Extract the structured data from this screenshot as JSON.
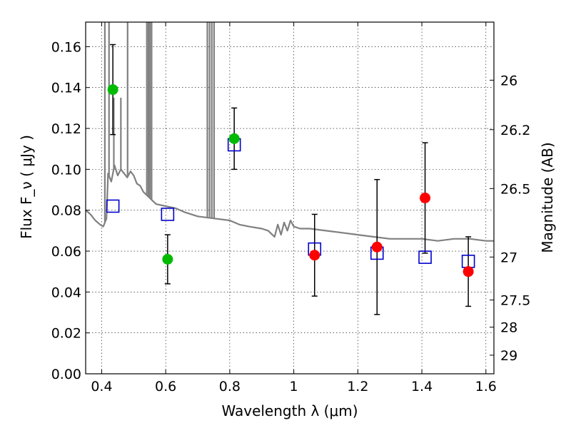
{
  "chart_data": {
    "type": "scatter",
    "xlabel": "Wavelength  λ (μm)",
    "ylabel": "Flux  F_ν  ( μJy )",
    "ylabel_right": "Magnitude (AB)",
    "xlim": [
      0.35,
      1.625
    ],
    "ylim": [
      0.0,
      0.172
    ],
    "grid": true,
    "x_ticks": [
      0.4,
      0.6,
      0.8,
      1.0,
      1.2,
      1.4,
      1.6
    ],
    "x_tick_labels": [
      "0.4",
      "0.6",
      "0.8",
      "1",
      "1.2",
      "1.4",
      "1.6"
    ],
    "y_ticks": [
      0.0,
      0.02,
      0.04,
      0.06,
      0.08,
      0.1,
      0.12,
      0.14,
      0.16
    ],
    "y_tick_labels": [
      "0.00",
      "0.02",
      "0.04",
      "0.06",
      "0.08",
      "0.10",
      "0.12",
      "0.14",
      "0.16"
    ],
    "right_ticks": [
      {
        "label": "26",
        "flux": 0.1436
      },
      {
        "label": "26.2",
        "flux": 0.1194
      },
      {
        "label": "26.5",
        "flux": 0.0906
      },
      {
        "label": "27",
        "flux": 0.0571
      },
      {
        "label": "27.5",
        "flux": 0.0361
      },
      {
        "label": "28",
        "flux": 0.0228
      },
      {
        "label": "29",
        "flux": 0.0091
      }
    ],
    "series": [
      {
        "name": "green photometry",
        "color": "#00bb00",
        "marker": "circle",
        "points": [
          {
            "x": 0.435,
            "y": 0.139,
            "ylo": 0.117,
            "yhi": 0.161
          },
          {
            "x": 0.606,
            "y": 0.056,
            "ylo": 0.044,
            "yhi": 0.068
          },
          {
            "x": 0.814,
            "y": 0.115,
            "ylo": 0.1,
            "yhi": 0.13
          }
        ]
      },
      {
        "name": "red photometry",
        "color": "#ff0000",
        "marker": "circle",
        "points": [
          {
            "x": 1.065,
            "y": 0.058,
            "ylo": 0.038,
            "yhi": 0.078
          },
          {
            "x": 1.26,
            "y": 0.062,
            "ylo": 0.029,
            "yhi": 0.095
          },
          {
            "x": 1.41,
            "y": 0.086,
            "ylo": 0.059,
            "yhi": 0.113
          },
          {
            "x": 1.545,
            "y": 0.05,
            "ylo": 0.033,
            "yhi": 0.067
          }
        ]
      },
      {
        "name": "model photometry",
        "color": "#0000cc",
        "marker": "open-square",
        "points": [
          {
            "x": 0.435,
            "y": 0.082
          },
          {
            "x": 0.606,
            "y": 0.078
          },
          {
            "x": 0.814,
            "y": 0.112
          },
          {
            "x": 1.065,
            "y": 0.061
          },
          {
            "x": 1.26,
            "y": 0.059
          },
          {
            "x": 1.41,
            "y": 0.057
          },
          {
            "x": 1.545,
            "y": 0.055
          }
        ]
      }
    ],
    "model_spectrum": {
      "name": "SED model",
      "color": "#808080",
      "points": [
        [
          0.35,
          0.08
        ],
        [
          0.365,
          0.078
        ],
        [
          0.38,
          0.075
        ],
        [
          0.395,
          0.073
        ],
        [
          0.405,
          0.072
        ],
        [
          0.415,
          0.076
        ],
        [
          0.42,
          0.098
        ],
        [
          0.43,
          0.094
        ],
        [
          0.44,
          0.102
        ],
        [
          0.45,
          0.097
        ],
        [
          0.46,
          0.1
        ],
        [
          0.47,
          0.098
        ],
        [
          0.48,
          0.096
        ],
        [
          0.49,
          0.099
        ],
        [
          0.5,
          0.097
        ],
        [
          0.51,
          0.093
        ],
        [
          0.52,
          0.092
        ],
        [
          0.53,
          0.089
        ],
        [
          0.55,
          0.086
        ],
        [
          0.57,
          0.083
        ],
        [
          0.6,
          0.082
        ],
        [
          0.63,
          0.081
        ],
        [
          0.66,
          0.079
        ],
        [
          0.7,
          0.077
        ],
        [
          0.75,
          0.076
        ],
        [
          0.8,
          0.075
        ],
        [
          0.83,
          0.073
        ],
        [
          0.86,
          0.072
        ],
        [
          0.9,
          0.071
        ],
        [
          0.92,
          0.07
        ],
        [
          0.94,
          0.067
        ],
        [
          0.95,
          0.073
        ],
        [
          0.96,
          0.068
        ],
        [
          0.97,
          0.074
        ],
        [
          0.98,
          0.07
        ],
        [
          0.99,
          0.075
        ],
        [
          1.0,
          0.072
        ],
        [
          1.02,
          0.071
        ],
        [
          1.05,
          0.071
        ],
        [
          1.1,
          0.07
        ],
        [
          1.15,
          0.069
        ],
        [
          1.2,
          0.068
        ],
        [
          1.25,
          0.067
        ],
        [
          1.3,
          0.066
        ],
        [
          1.35,
          0.066
        ],
        [
          1.4,
          0.066
        ],
        [
          1.45,
          0.065
        ],
        [
          1.5,
          0.066
        ],
        [
          1.55,
          0.066
        ],
        [
          1.6,
          0.065
        ],
        [
          1.625,
          0.065
        ]
      ],
      "emission_lines": [
        {
          "x": 0.41,
          "peak": 0.172
        },
        {
          "x": 0.423,
          "peak": 0.172
        },
        {
          "x": 0.438,
          "peak": 0.135
        },
        {
          "x": 0.46,
          "peak": 0.135
        },
        {
          "x": 0.481,
          "peak": 0.172
        },
        {
          "x": 0.541,
          "peak": 0.172
        },
        {
          "x": 0.546,
          "peak": 0.172
        },
        {
          "x": 0.551,
          "peak": 0.172
        },
        {
          "x": 0.556,
          "peak": 0.172
        },
        {
          "x": 0.73,
          "peak": 0.172
        },
        {
          "x": 0.737,
          "peak": 0.172
        },
        {
          "x": 0.744,
          "peak": 0.172
        },
        {
          "x": 0.751,
          "peak": 0.172
        }
      ]
    }
  }
}
